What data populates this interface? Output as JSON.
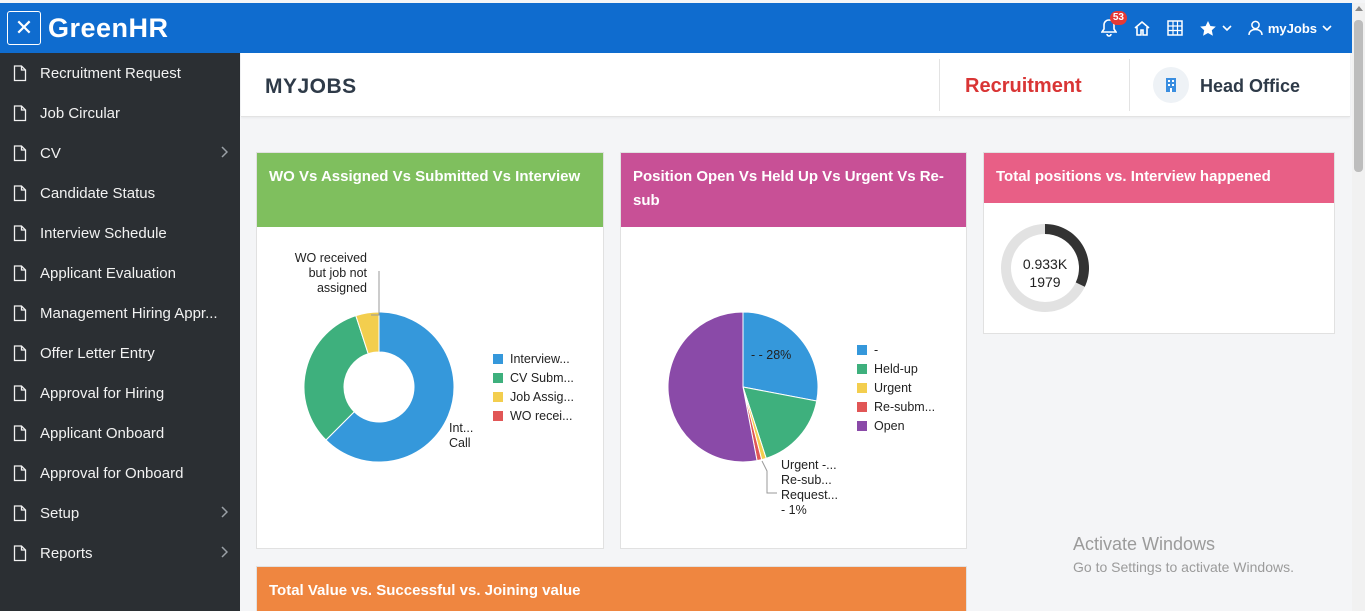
{
  "app": {
    "brand": "GreenHR",
    "close_icon": "close-icon",
    "notifications_count": "53",
    "user_menu_label": "myJobs"
  },
  "sidebar": {
    "items": [
      {
        "label": "Recruitment Request",
        "has_children": false
      },
      {
        "label": "Job Circular",
        "has_children": false
      },
      {
        "label": "CV",
        "has_children": true
      },
      {
        "label": "Candidate Status",
        "has_children": false
      },
      {
        "label": "Interview Schedule",
        "has_children": false
      },
      {
        "label": "Applicant Evaluation",
        "has_children": false
      },
      {
        "label": "Management Hiring Appr...",
        "has_children": false
      },
      {
        "label": "Offer Letter Entry",
        "has_children": false
      },
      {
        "label": "Approval for Hiring",
        "has_children": false
      },
      {
        "label": "Applicant Onboard",
        "has_children": false
      },
      {
        "label": "Approval for Onboard",
        "has_children": false
      },
      {
        "label": "Setup",
        "has_children": true
      },
      {
        "label": "Reports",
        "has_children": true
      }
    ]
  },
  "header": {
    "page_title": "MYJOBS",
    "module": "Recruitment",
    "office": "Head Office"
  },
  "cards": {
    "wo": {
      "title": "WO Vs Assigned Vs Submitted Vs Interview",
      "color": "#7fbf5e",
      "callout_top": [
        "WO received",
        "but job not",
        "assigned"
      ],
      "callout_right": [
        "Int...",
        "Call"
      ],
      "legend": [
        "Interview...",
        "CV Subm...",
        "Job Assig...",
        "WO recei..."
      ]
    },
    "position": {
      "title": "Position Open Vs Held Up Vs Urgent Vs Re-sub",
      "color": "#c85096",
      "inner_label": "- - 28%",
      "callout_bottom": [
        "Urgent -...",
        "Re-sub...",
        "Request...",
        "- 1%"
      ],
      "legend": [
        "-",
        "Held-up",
        "Urgent",
        "Re-subm...",
        "Open"
      ]
    },
    "total": {
      "title": "Total positions vs. Interview happened",
      "color": "#e85f86",
      "center_line1": "0.933K",
      "center_line2": "1979"
    },
    "value": {
      "title": "Total Value vs. Successful vs. Joining value",
      "color": "#ef8640"
    }
  },
  "chart_data": [
    {
      "type": "pie",
      "variant": "donut",
      "categories": [
        "Interview Call",
        "CV Submitted",
        "Job Assigned",
        "WO received but job not assigned"
      ],
      "values": [
        62.5,
        32.5,
        5.0,
        0.0
      ],
      "colors": [
        "#3598db",
        "#3eb07d",
        "#f3ce4e",
        "#e15656"
      ]
    },
    {
      "type": "pie",
      "categories": [
        "-",
        "Held-up",
        "Urgent",
        "Re-submission",
        "Open"
      ],
      "values": [
        28,
        17,
        1,
        1,
        53
      ],
      "colors": [
        "#3598db",
        "#3eb07d",
        "#f3ce4e",
        "#e15656",
        "#8a4aa8"
      ]
    },
    {
      "type": "pie",
      "variant": "donut",
      "categories": [
        "Interview happened",
        "Total positions"
      ],
      "values": [
        933,
        1979
      ],
      "colors": [
        "#333333",
        "#e2e2e2"
      ]
    }
  ],
  "watermark": {
    "line1": "Activate Windows",
    "line2": "Go to Settings to activate Windows."
  }
}
